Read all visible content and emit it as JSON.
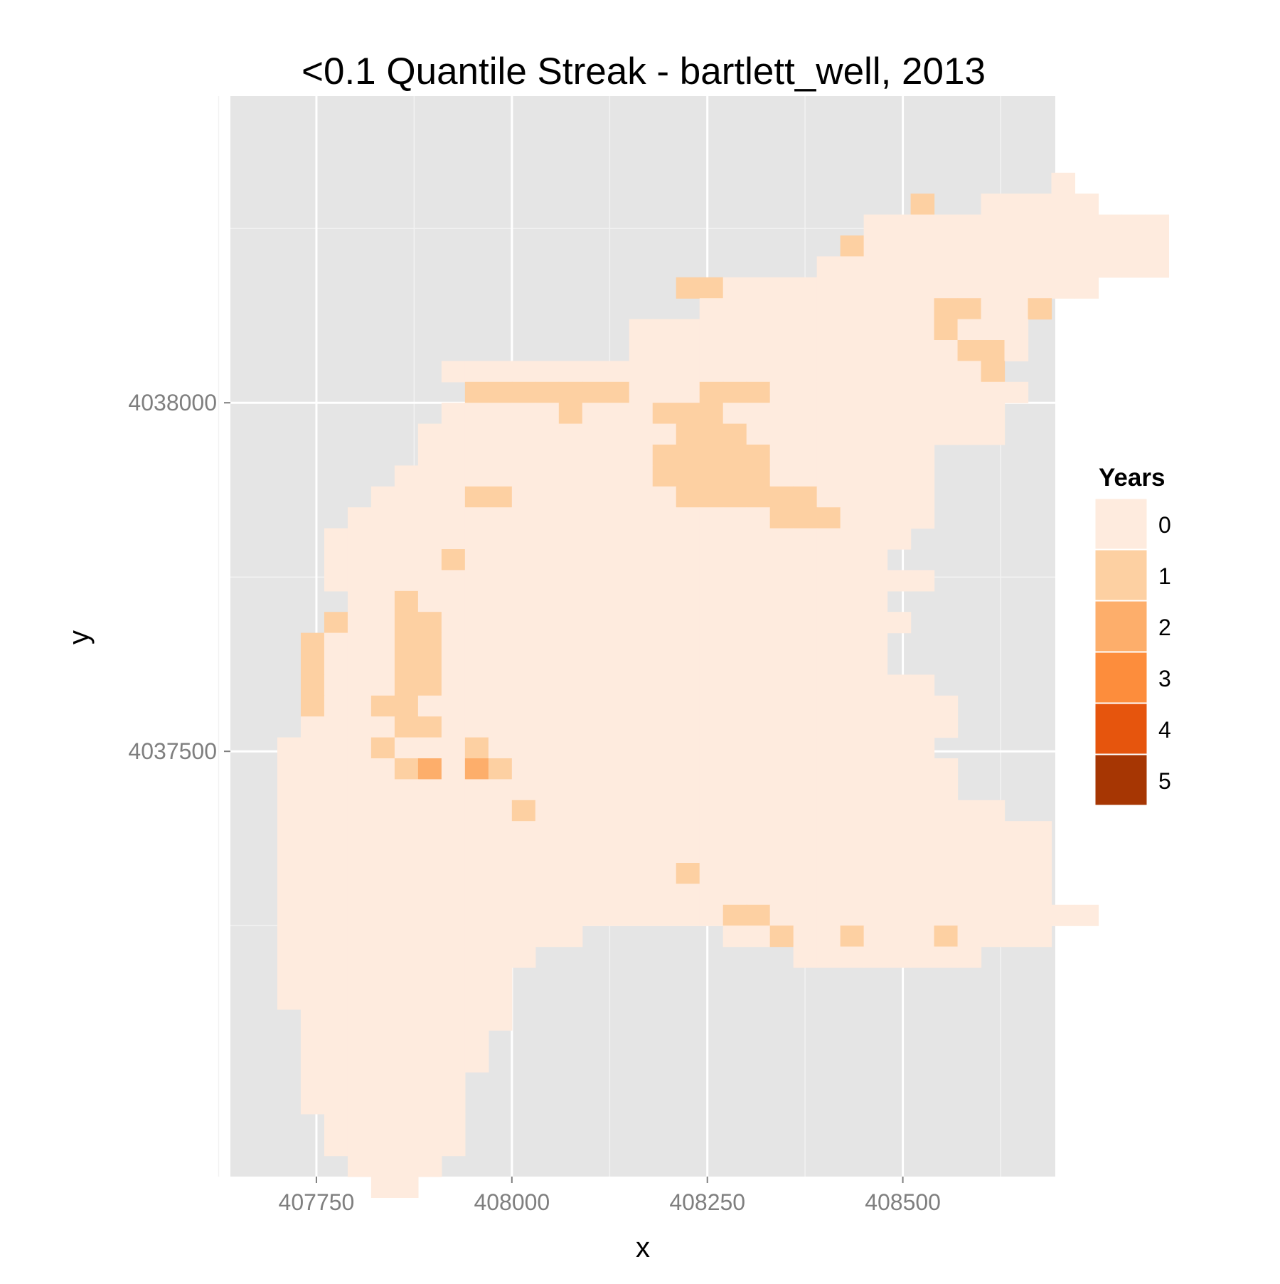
{
  "chart_data": {
    "type": "heatmap",
    "title": "<0.1 Quantile Streak - bartlett_well, 2013",
    "xlabel": "x",
    "ylabel": "y",
    "xlim": [
      407640,
      408695
    ],
    "ylim": [
      4036890,
      4038440
    ],
    "x_ticks": [
      407750,
      408000,
      408250,
      408500
    ],
    "x_tick_labels": [
      "407750",
      "408000",
      "408250",
      "408500"
    ],
    "y_ticks": [
      4037500,
      4038000
    ],
    "y_tick_labels": [
      "4037500",
      "4038000"
    ],
    "x_minor": [
      407625,
      407875,
      408125,
      408375,
      408625
    ],
    "y_minor": [
      4037250,
      4037750,
      4038250
    ],
    "grid": true,
    "cell_size": 30,
    "x0": 407700,
    "y_top": 4038330,
    "background": "#e5e5e5",
    "legend": {
      "title": "Years",
      "position": "right",
      "levels": [
        {
          "label": "0",
          "color": "#feebde"
        },
        {
          "label": "1",
          "color": "#fdd0a2"
        },
        {
          "label": "2",
          "color": "#fdae6b"
        },
        {
          "label": "3",
          "color": "#fd8d3c"
        },
        {
          "label": "4",
          "color": "#e6550d"
        },
        {
          "label": "5",
          "color": "#a63603"
        }
      ]
    },
    "rows": [
      ".................................0....",
      "...........................1..00000...",
      ".........................0000000000000",
      "........................10000000000000",
      ".......................000000000000000",
      ".................110000000000000000...",
      "..................000000000011001.....",
      "...............00000000000001000......",
      "...............00000000000000110......",
      ".......000000000000000000000001.......",
      "........111111100011100000000000.......",
      ".......000001000111000000000000.......",
      "......0000000000011100000000000.......",
      "......0000000000111110000000..........",
      ".....00000000000111110000000..........",
      "....000011000000011111100000..........",
      "...0000000000000000001110000..........",
      "..0000000000000000000000000...........",
      "..000001000000000000000000............",
      "..00000000000000000000000000..........",
      "...00100000000000000000000............",
      "..1001100000000000000000000...........",
      ".1000110000000000000000000............",
      ".1000110000000000000000000............",
      ".100011000000000000000000000..........",
      ".1001100000000000000000000000.........",
      ".0000110000000000000000000000.........",
      "0000100010000000000000000000..........",
      "00000120210000000000000000000.........",
      "00000000000000000000000000000.........",
      "0000000000100000000000000000000.......",
      "000000000000000000000000000000000.....",
      "000000000000000000000000000000000.....",
      "000000000000000001000000000000000.....",
      "000000000000000000000000000000000.....",
      "00000000000000000001100000000000000...",
      "0000000000000......00100100010000.....",
      "00000000000...........00000000.......",
      "0000000000...............................",
      "0000000000...........................",
      ".000000000...........................",
      ".00000000............................",
      ".00000000............................",
      ".0000000.............................",
      ".0000000.............................",
      "..000000.............................",
      "..000000.............................",
      "...0000..............................",
      "....00..............................."
    ]
  }
}
